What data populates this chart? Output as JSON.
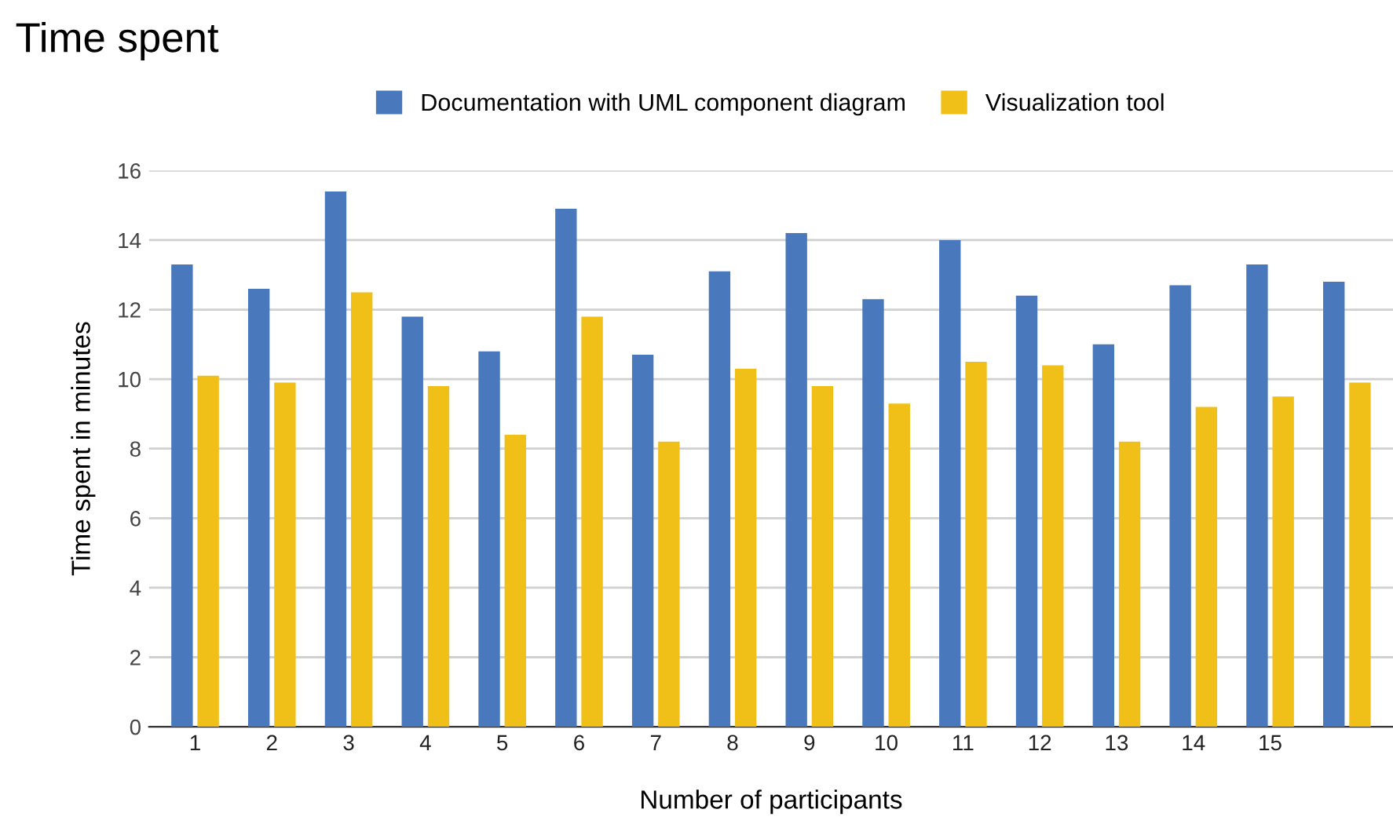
{
  "chart_data": {
    "type": "bar",
    "title": "Time spent",
    "xlabel": "Number of participants",
    "ylabel": "Time spent in minutes",
    "categories": [
      "1",
      "2",
      "3",
      "4",
      "5",
      "6",
      "7",
      "8",
      "9",
      "10",
      "11",
      "12",
      "13",
      "14",
      "15",
      null
    ],
    "series": [
      {
        "name": "Documentation with UML component diagram",
        "color": "#4a78bd",
        "values": [
          13.3,
          12.6,
          15.4,
          11.8,
          10.8,
          14.9,
          10.7,
          13.1,
          14.2,
          12.3,
          14.0,
          12.4,
          11.0,
          12.7,
          13.3,
          12.8
        ]
      },
      {
        "name": "Visualization tool",
        "color": "#f0c018",
        "values": [
          10.1,
          9.9,
          12.5,
          9.8,
          8.4,
          11.8,
          8.2,
          10.3,
          9.8,
          9.3,
          10.5,
          10.4,
          8.2,
          9.2,
          9.5,
          9.9
        ]
      }
    ],
    "ylim": [
      0,
      16
    ],
    "yticks": [
      0,
      2,
      4,
      6,
      8,
      10,
      12,
      14,
      16
    ],
    "grid": "y",
    "legend": "top"
  }
}
